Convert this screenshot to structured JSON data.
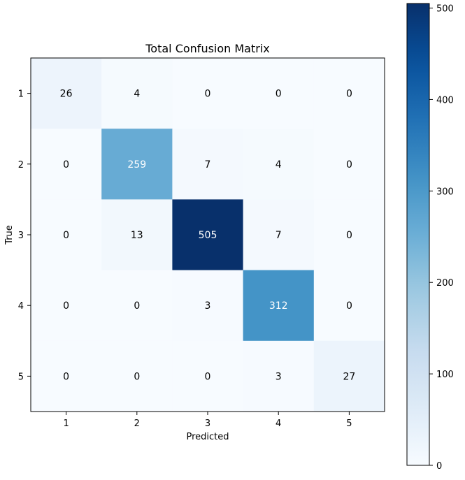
{
  "chart_data": {
    "type": "heatmap",
    "title": "Total Confusion Matrix",
    "xlabel": "Predicted",
    "ylabel": "True",
    "x_categories": [
      "1",
      "2",
      "3",
      "4",
      "5"
    ],
    "y_categories": [
      "1",
      "2",
      "3",
      "4",
      "5"
    ],
    "values": [
      [
        26,
        4,
        0,
        0,
        0
      ],
      [
        0,
        259,
        7,
        4,
        0
      ],
      [
        0,
        13,
        505,
        7,
        0
      ],
      [
        0,
        0,
        3,
        312,
        0
      ],
      [
        0,
        0,
        0,
        3,
        27
      ]
    ],
    "colormap": "Blues",
    "color_range": [
      0,
      505
    ],
    "colorbar_ticks": [
      0,
      100,
      200,
      300,
      400,
      500
    ],
    "colors": {
      "text_dark": "#000000",
      "text_light": "#ffffff"
    }
  }
}
